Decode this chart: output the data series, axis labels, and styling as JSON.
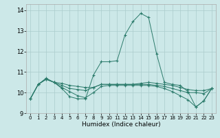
{
  "xlabel": "Humidex (Indice chaleur)",
  "xlim": [
    -0.5,
    23.5
  ],
  "ylim": [
    9.0,
    14.3
  ],
  "yticks": [
    9,
    10,
    11,
    12,
    13,
    14
  ],
  "xticks": [
    0,
    1,
    2,
    3,
    4,
    5,
    6,
    7,
    8,
    9,
    10,
    11,
    12,
    13,
    14,
    15,
    16,
    17,
    18,
    19,
    20,
    21,
    22,
    23
  ],
  "bg_color": "#cce8e8",
  "line_color": "#2a7a6a",
  "grid_color": "#aacccc",
  "series": [
    [
      9.7,
      10.4,
      10.7,
      10.5,
      10.2,
      9.8,
      9.7,
      9.7,
      10.85,
      11.5,
      11.5,
      11.55,
      12.8,
      13.45,
      13.85,
      13.65,
      11.9,
      10.5,
      10.4,
      10.35,
      10.05,
      9.3,
      9.6,
      10.2
    ],
    [
      9.7,
      10.4,
      10.65,
      10.5,
      10.45,
      10.35,
      10.3,
      10.25,
      10.25,
      10.4,
      10.4,
      10.4,
      10.4,
      10.4,
      10.45,
      10.5,
      10.45,
      10.4,
      10.35,
      10.25,
      10.15,
      10.1,
      10.1,
      10.2
    ],
    [
      9.7,
      10.4,
      10.65,
      10.5,
      10.35,
      10.2,
      10.15,
      10.1,
      10.25,
      10.4,
      10.4,
      10.4,
      10.4,
      10.4,
      10.4,
      10.4,
      10.35,
      10.3,
      10.2,
      10.1,
      10.0,
      10.0,
      9.95,
      10.2
    ],
    [
      9.7,
      10.4,
      10.65,
      10.5,
      10.25,
      10.05,
      9.85,
      9.75,
      10.0,
      10.3,
      10.35,
      10.35,
      10.35,
      10.35,
      10.35,
      10.35,
      10.3,
      10.2,
      10.05,
      9.85,
      9.65,
      9.3,
      9.6,
      10.2
    ]
  ]
}
